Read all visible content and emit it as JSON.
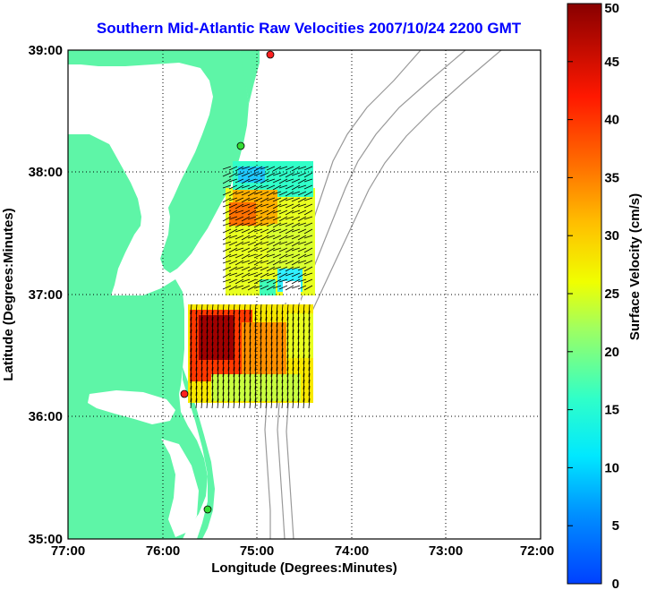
{
  "title": "Southern Mid-Atlantic Raw Velocities 2007/10/24 2200 GMT",
  "xlabel": "Longitude (Degrees:Minutes)",
  "ylabel": "Latitude (Degrees:Minutes)",
  "colorbar_label": "Surface Velocity (cm/s)",
  "x_ticks": [
    "77:00",
    "76:00",
    "75:00",
    "74:00",
    "73:00",
    "72:00"
  ],
  "y_ticks": [
    "39:00",
    "38:00",
    "37:00",
    "36:00",
    "35:00"
  ],
  "colorbar_ticks": [
    "0",
    "5",
    "10",
    "15",
    "20",
    "25",
    "30",
    "35",
    "40",
    "45",
    "50"
  ],
  "colors": {
    "land": "#5ef5a7",
    "title": "#0000ff",
    "bathymetry": "#999999",
    "station_red": "#ff2020",
    "station_green": "#33dd33"
  },
  "chart_data": {
    "type": "heatmap",
    "description_type": "current vector map",
    "xlim": [
      -77.0,
      -72.0
    ],
    "ylim": [
      35.0,
      39.0
    ],
    "colorbar_range": [
      0,
      50
    ],
    "grid": true,
    "stations": [
      {
        "lon": -74.9,
        "lat": 38.97,
        "color": "red"
      },
      {
        "lon": -75.1,
        "lat": 38.22,
        "color": "green"
      },
      {
        "lon": -75.75,
        "lat": 36.25,
        "color": "red"
      },
      {
        "lon": -75.5,
        "lat": 35.25,
        "color": "green"
      }
    ]
  }
}
